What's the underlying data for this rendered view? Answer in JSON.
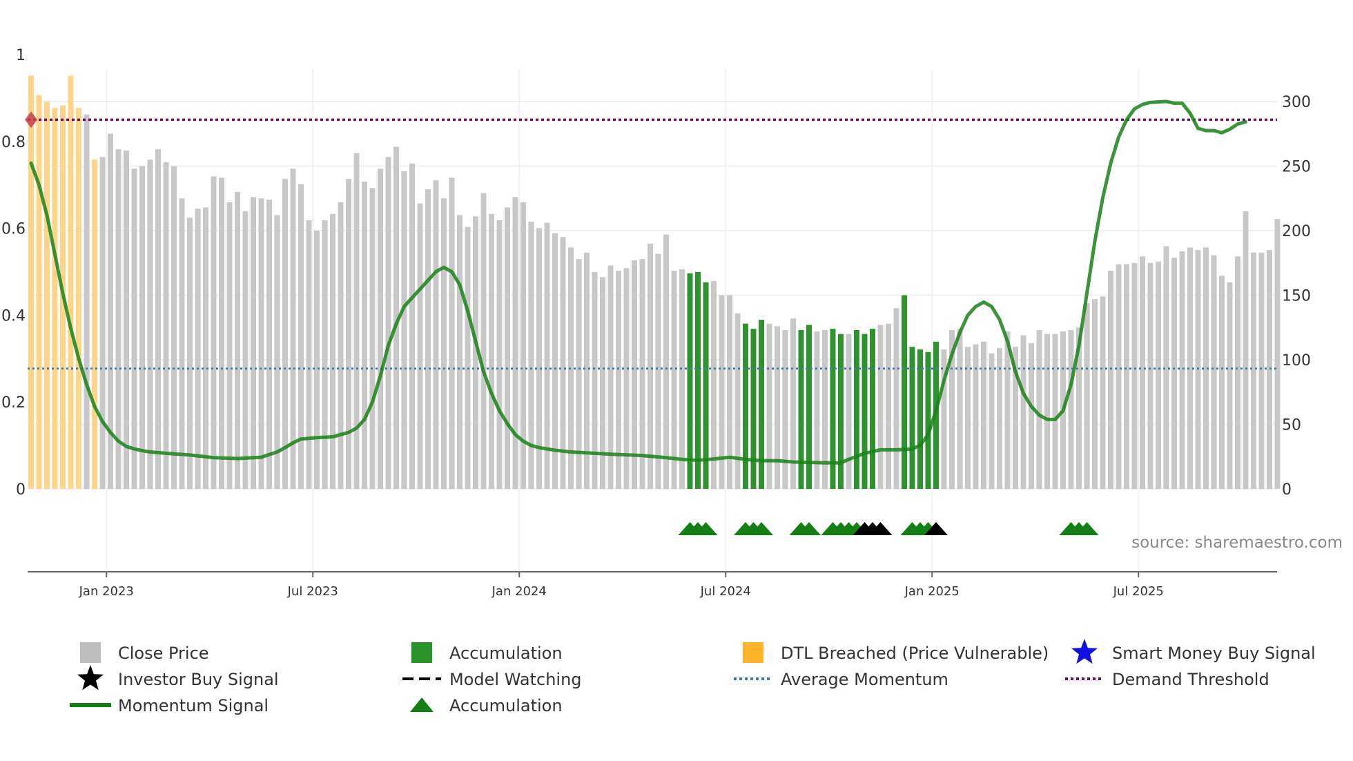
{
  "chart_data": {
    "type": "bar",
    "title": "",
    "source": "source: sharemaestro.com",
    "y_left": {
      "ticks": [
        "0",
        "0.2",
        "0.4",
        "0.6",
        "0.8",
        "1"
      ],
      "range": [
        0,
        1
      ]
    },
    "y_right": {
      "ticks": [
        "0",
        "50",
        "100",
        "150",
        "200",
        "250",
        "300"
      ],
      "range": [
        0,
        300
      ]
    },
    "x_ticks": [
      {
        "label": "Jan 2023",
        "week": 9.5
      },
      {
        "label": "Jul 2023",
        "week": 35.5
      },
      {
        "label": "Jan 2024",
        "week": 61.5
      },
      {
        "label": "Jul 2024",
        "week": 87.5
      },
      {
        "label": "Jan 2025",
        "week": 113.5
      },
      {
        "label": "Jul 2025",
        "week": 139.5
      }
    ],
    "close_price_weekly": [
      320,
      305,
      300,
      295,
      297,
      320,
      295,
      290,
      255,
      257,
      275,
      263,
      262,
      248,
      250,
      255,
      263,
      253,
      250,
      225,
      210,
      217,
      218,
      242,
      241,
      222,
      230,
      215,
      226,
      225,
      224,
      212,
      240,
      248,
      236,
      208,
      200,
      208,
      213,
      222,
      240,
      260,
      238,
      233,
      248,
      257,
      265,
      246,
      252,
      221,
      232,
      239,
      225,
      241,
      212,
      203,
      211,
      229,
      213,
      208,
      218,
      226,
      222,
      207,
      202,
      206,
      198,
      195,
      187,
      178,
      183,
      168,
      164,
      173,
      169,
      171,
      177,
      178,
      190,
      182,
      197,
      169,
      170,
      167,
      168,
      160,
      161,
      150,
      150,
      136,
      128,
      124,
      131,
      128,
      126,
      123,
      132,
      123,
      127,
      122,
      123,
      124,
      120,
      120,
      123,
      120,
      124,
      127,
      128,
      140,
      150,
      110,
      108,
      106,
      114,
      108,
      123,
      124,
      110,
      112,
      114,
      105,
      109,
      122,
      110,
      119,
      113,
      123,
      120,
      120,
      122,
      123,
      125,
      144,
      147,
      149,
      169,
      174,
      174,
      175,
      180,
      175,
      176,
      188,
      179,
      184,
      187,
      185,
      187,
      181,
      165,
      160,
      180,
      215,
      183,
      183,
      185,
      209
    ],
    "categories_weekly": [
      "dtl",
      "dtl",
      "dtl",
      "dtl",
      "dtl",
      "dtl",
      "dtl",
      "grey",
      "dtl",
      "grey",
      "grey",
      "grey",
      "grey",
      "grey",
      "grey",
      "grey",
      "grey",
      "grey",
      "grey",
      "grey",
      "grey",
      "grey",
      "grey",
      "grey",
      "grey",
      "grey",
      "grey",
      "grey",
      "grey",
      "grey",
      "grey",
      "grey",
      "grey",
      "grey",
      "grey",
      "grey",
      "grey",
      "grey",
      "grey",
      "grey",
      "grey",
      "grey",
      "grey",
      "grey",
      "grey",
      "grey",
      "grey",
      "grey",
      "grey",
      "grey",
      "grey",
      "grey",
      "grey",
      "grey",
      "grey",
      "grey",
      "grey",
      "grey",
      "grey",
      "grey",
      "grey",
      "grey",
      "grey",
      "grey",
      "grey",
      "grey",
      "grey",
      "grey",
      "grey",
      "grey",
      "grey",
      "grey",
      "grey",
      "grey",
      "grey",
      "grey",
      "grey",
      "grey",
      "grey",
      "grey",
      "grey",
      "grey",
      "grey",
      "acc",
      "acc",
      "acc",
      "grey",
      "grey",
      "grey",
      "grey",
      "acc",
      "acc",
      "acc",
      "grey",
      "grey",
      "grey",
      "grey",
      "acc",
      "acc",
      "grey",
      "grey",
      "acc",
      "acc",
      "grey",
      "acc",
      "acc",
      "acc",
      "grey",
      "grey",
      "grey",
      "acc",
      "acc",
      "acc",
      "acc",
      "acc",
      "grey",
      "grey",
      "grey",
      "grey",
      "grey",
      "grey",
      "grey",
      "grey",
      "grey",
      "grey",
      "grey",
      "grey",
      "grey",
      "grey",
      "grey",
      "grey",
      "grey",
      "grey",
      "grey",
      "grey",
      "grey",
      "grey",
      "grey",
      "grey",
      "grey",
      "grey",
      "grey",
      "grey",
      "grey",
      "grey",
      "grey",
      "grey",
      "grey",
      "grey",
      "grey",
      "grey",
      "grey",
      "grey",
      "grey",
      "grey",
      "grey",
      "grey",
      "grey"
    ],
    "momentum_signal": [
      [
        0,
        0.75
      ],
      [
        1,
        0.7
      ],
      [
        2,
        0.63
      ],
      [
        3,
        0.54
      ],
      [
        4,
        0.45
      ],
      [
        5,
        0.37
      ],
      [
        6,
        0.3
      ],
      [
        7,
        0.24
      ],
      [
        8,
        0.19
      ],
      [
        9,
        0.155
      ],
      [
        10,
        0.13
      ],
      [
        11,
        0.11
      ],
      [
        12,
        0.098
      ],
      [
        13,
        0.092
      ],
      [
        14,
        0.088
      ],
      [
        15,
        0.085
      ],
      [
        17,
        0.082
      ],
      [
        20,
        0.078
      ],
      [
        23,
        0.072
      ],
      [
        26,
        0.07
      ],
      [
        29,
        0.073
      ],
      [
        31,
        0.085
      ],
      [
        32,
        0.095
      ],
      [
        33,
        0.106
      ],
      [
        34,
        0.115
      ],
      [
        36,
        0.118
      ],
      [
        38,
        0.12
      ],
      [
        40,
        0.13
      ],
      [
        41,
        0.14
      ],
      [
        42,
        0.16
      ],
      [
        43,
        0.2
      ],
      [
        44,
        0.26
      ],
      [
        45,
        0.33
      ],
      [
        46,
        0.38
      ],
      [
        47,
        0.42
      ],
      [
        48,
        0.44
      ],
      [
        49,
        0.46
      ],
      [
        50,
        0.48
      ],
      [
        51,
        0.5
      ],
      [
        52,
        0.51
      ],
      [
        53,
        0.5
      ],
      [
        54,
        0.47
      ],
      [
        55,
        0.41
      ],
      [
        56,
        0.34
      ],
      [
        57,
        0.27
      ],
      [
        58,
        0.22
      ],
      [
        59,
        0.18
      ],
      [
        60,
        0.15
      ],
      [
        61,
        0.125
      ],
      [
        62,
        0.11
      ],
      [
        63,
        0.1
      ],
      [
        64,
        0.095
      ],
      [
        66,
        0.089
      ],
      [
        68,
        0.085
      ],
      [
        71,
        0.082
      ],
      [
        74,
        0.079
      ],
      [
        77,
        0.077
      ],
      [
        80,
        0.072
      ],
      [
        82,
        0.068
      ],
      [
        84,
        0.066
      ],
      [
        86,
        0.069
      ],
      [
        88,
        0.073
      ],
      [
        90,
        0.068
      ],
      [
        92,
        0.065
      ],
      [
        94,
        0.065
      ],
      [
        96,
        0.062
      ],
      [
        98,
        0.061
      ],
      [
        100,
        0.06
      ],
      [
        102,
        0.06
      ],
      [
        103,
        0.068
      ],
      [
        105,
        0.082
      ],
      [
        107,
        0.09
      ],
      [
        109,
        0.09
      ],
      [
        111,
        0.092
      ],
      [
        112,
        0.1
      ],
      [
        113,
        0.125
      ],
      [
        114,
        0.18
      ],
      [
        115,
        0.25
      ],
      [
        116,
        0.31
      ],
      [
        117,
        0.36
      ],
      [
        118,
        0.4
      ],
      [
        119,
        0.42
      ],
      [
        120,
        0.43
      ],
      [
        121,
        0.42
      ],
      [
        122,
        0.39
      ],
      [
        123,
        0.34
      ],
      [
        124,
        0.27
      ],
      [
        125,
        0.22
      ],
      [
        126,
        0.19
      ],
      [
        127,
        0.17
      ],
      [
        128,
        0.16
      ],
      [
        129,
        0.16
      ],
      [
        130,
        0.18
      ],
      [
        131,
        0.24
      ],
      [
        132,
        0.33
      ],
      [
        133,
        0.45
      ],
      [
        134,
        0.57
      ],
      [
        135,
        0.67
      ],
      [
        136,
        0.75
      ],
      [
        137,
        0.81
      ],
      [
        138,
        0.85
      ],
      [
        139,
        0.875
      ],
      [
        140,
        0.885
      ],
      [
        141,
        0.89
      ],
      [
        142,
        0.891
      ],
      [
        143,
        0.892
      ],
      [
        144,
        0.888
      ],
      [
        145,
        0.888
      ],
      [
        146,
        0.865
      ],
      [
        147,
        0.83
      ],
      [
        148,
        0.825
      ],
      [
        149,
        0.825
      ],
      [
        150,
        0.82
      ],
      [
        151,
        0.828
      ],
      [
        152,
        0.84
      ],
      [
        153,
        0.845
      ]
    ],
    "average_momentum": 0.277,
    "demand_threshold": 0.85,
    "markers": {
      "accumulation": [
        83,
        84,
        85,
        90,
        91,
        92,
        97,
        98,
        101,
        102,
        103,
        104,
        111,
        112,
        113,
        131,
        132,
        133
      ],
      "investor_buy_signal": [
        105,
        106,
        107,
        114
      ]
    },
    "legend": [
      {
        "label": "Close Price",
        "kind": "square",
        "color": "#bbbbbb"
      },
      {
        "label": "Accumulation",
        "kind": "square",
        "color": "#1e8c1e"
      },
      {
        "label": "DTL Breached (Price Vulnerable)",
        "kind": "square",
        "color": "#ffb020"
      },
      {
        "label": "Smart Money Buy Signal",
        "kind": "star",
        "color": "#1010e0"
      },
      {
        "label": "Investor Buy Signal",
        "kind": "star",
        "color": "#000000"
      },
      {
        "label": "Model Watching",
        "kind": "dash",
        "color": "#000000"
      },
      {
        "label": "Average Momentum",
        "kind": "dot",
        "color": "#3b78a8"
      },
      {
        "label": "Demand Threshold",
        "kind": "dot",
        "color": "#6a0a5a"
      },
      {
        "label": "Momentum Signal",
        "kind": "line",
        "color": "#168016"
      },
      {
        "label": "Accumulation",
        "kind": "triangle",
        "color": "#128012"
      }
    ],
    "colors": {
      "grey": "#c8c8c8",
      "acc": "#2e922e",
      "dtl": "#ffd58a",
      "momentum": "#178317",
      "avg": "#4a7fa6",
      "threshold": "#6c1064",
      "triangle": "#128012",
      "investor": "#000000",
      "start_marker": "#c84048"
    }
  }
}
